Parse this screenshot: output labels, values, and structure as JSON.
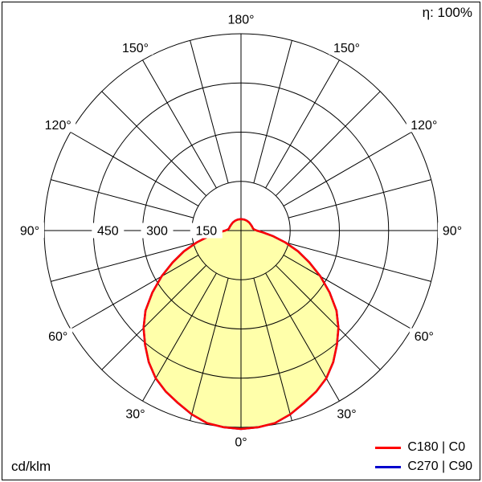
{
  "header": {
    "eta": "η: 100%"
  },
  "footer": {
    "unit": "cd/klm"
  },
  "legend": [
    {
      "id": "c180-c0",
      "label": "C180 | C0",
      "color": "#ff0000"
    },
    {
      "id": "c270-c90",
      "label": "C270 | C90",
      "color": "#0000cd"
    }
  ],
  "chart_data": {
    "type": "polar-line",
    "description": "Luminous intensity distribution curve (polar photometric diagram)",
    "unit": "cd/klm",
    "efficiency": "η: 100%",
    "r_max": 600,
    "radial_ticks": [
      150,
      300,
      450
    ],
    "angle_labels_deg": [
      0,
      30,
      60,
      90,
      120,
      150,
      180
    ],
    "grid_step_deg": 15,
    "fill_color": "#ffffaa",
    "series": [
      {
        "id": "c180-c0",
        "name": "C180 | C0",
        "color": "#ff0000",
        "gamma_deg": [
          0,
          5,
          10,
          15,
          20,
          25,
          30,
          35,
          40,
          45,
          50,
          55,
          60,
          65,
          70,
          75,
          80,
          85,
          90,
          95,
          100,
          110,
          120,
          135,
          150,
          165,
          180
        ],
        "values": [
          605,
          602,
          596,
          580,
          560,
          542,
          520,
          490,
          455,
          420,
          380,
          330,
          280,
          230,
          185,
          140,
          100,
          68,
          48,
          40,
          37,
          36,
          35,
          35,
          35,
          35,
          35
        ]
      },
      {
        "id": "c270-c90",
        "name": "C270 | C90",
        "color": "#0000cd",
        "gamma_deg": [
          0,
          5,
          10,
          15,
          20,
          25,
          30,
          35,
          40,
          45,
          50,
          55,
          60,
          65,
          70,
          75,
          80,
          85,
          90,
          95,
          100,
          110,
          120,
          135,
          150,
          165,
          180
        ],
        "values": [
          605,
          602,
          596,
          580,
          560,
          542,
          520,
          490,
          455,
          420,
          380,
          330,
          280,
          230,
          185,
          140,
          100,
          68,
          48,
          40,
          37,
          36,
          35,
          35,
          35,
          35,
          35
        ]
      }
    ]
  }
}
